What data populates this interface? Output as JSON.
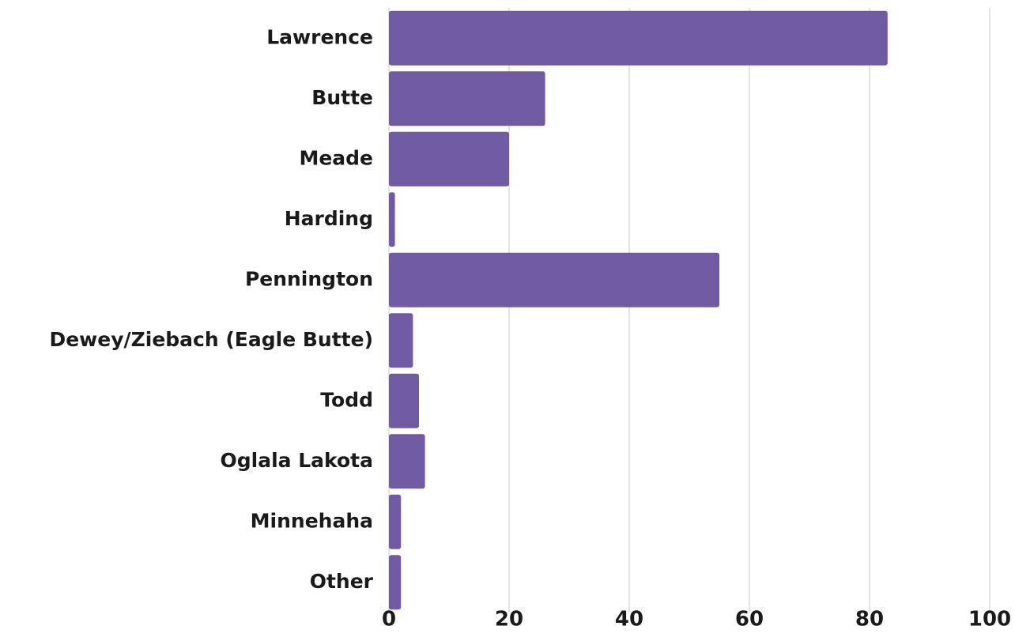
{
  "chart_data": {
    "type": "bar",
    "orientation": "horizontal",
    "categories": [
      "Lawrence",
      "Butte",
      "Meade",
      "Harding",
      "Pennington",
      "Dewey/Ziebach (Eagle Butte)",
      "Todd",
      "Oglala Lakota",
      "Minnehaha",
      "Other"
    ],
    "values": [
      83,
      26,
      20,
      1,
      55,
      4,
      5,
      6,
      2,
      2
    ],
    "xlim": [
      0,
      100
    ],
    "xticks": [
      0,
      20,
      40,
      60,
      80,
      100
    ],
    "title": "",
    "xlabel": "",
    "ylabel": "",
    "grid": "vertical",
    "legend": "none",
    "bar_color": "#705ba3"
  }
}
